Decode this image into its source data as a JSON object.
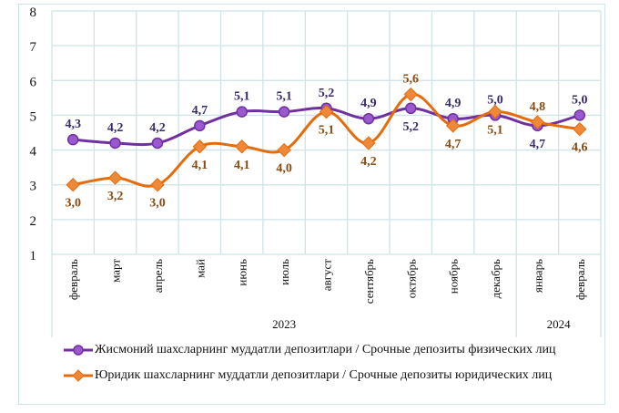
{
  "chart_data": {
    "type": "line",
    "categories": [
      "февраль",
      "март",
      "апрель",
      "май",
      "июнь",
      "июль",
      "август",
      "сентябрь",
      "октябрь",
      "ноябрь",
      "декабрь",
      "январь",
      "февраль"
    ],
    "year_groups": [
      {
        "label": "2023",
        "span": 11
      },
      {
        "label": "2024",
        "span": 2
      }
    ],
    "ylim": [
      1,
      8
    ],
    "yticks": [
      1,
      2,
      3,
      4,
      5,
      6,
      7,
      8
    ],
    "grid": true,
    "legend_position": "bottom",
    "series": [
      {
        "name": "Жисмоний шахсларнинг  муддатли  депозитлари  / Срочные депозиты  физических  лиц",
        "color": "#7030a0",
        "fill": "#9b59d0",
        "marker": "circle",
        "values": [
          4.3,
          4.2,
          4.2,
          4.7,
          5.1,
          5.1,
          5.2,
          4.9,
          5.2,
          4.9,
          5.0,
          4.7,
          5.0
        ],
        "labels": [
          "4,3",
          "4,2",
          "4,2",
          "4,7",
          "5,1",
          "5,1",
          "5,2",
          "4,9",
          "5,2",
          "4,9",
          "5,0",
          "4,7",
          "5,0"
        ]
      },
      {
        "name": "Юридик  шахсларнинг  муддатли  депозитлари  / Срочные депозиты  юридических  лиц",
        "color": "#e46c0a",
        "fill": "#f0883a",
        "marker": "diamond",
        "values": [
          3.0,
          3.2,
          3.0,
          4.1,
          4.1,
          4.0,
          5.1,
          4.2,
          5.6,
          4.7,
          5.1,
          4.8,
          4.6
        ],
        "labels": [
          "3,0",
          "3,2",
          "3,0",
          "4,1",
          "4,1",
          "4,0",
          "5,1",
          "4,2",
          "5,6",
          "4,7",
          "5,1",
          "4,8",
          "4,6"
        ]
      }
    ]
  }
}
